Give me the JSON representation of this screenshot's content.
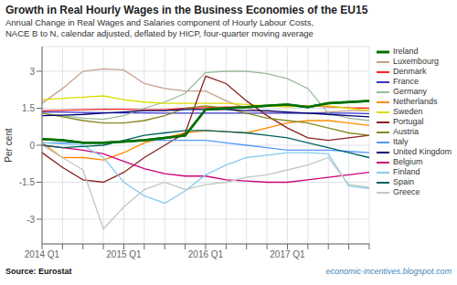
{
  "chart_data": {
    "type": "line",
    "title": "Growth in Real Hourly Wages in the Business Economies of the EU15",
    "subtitle": [
      "Annual Change in Real Wages and Salaries component of Hourly Labour Costs,",
      "NACE B to N, calendar adjusted, deflated by HICP, four-quarter moving average"
    ],
    "ylabel": "Per cent",
    "watermark": "economic-incentives.blogspot.com",
    "source": "Source: Eurostat",
    "categories": [
      "2014 Q1",
      null,
      null,
      null,
      "2015 Q1",
      null,
      null,
      null,
      "2016 Q1",
      null,
      null,
      null,
      "2017 Q1",
      null,
      null,
      null,
      null
    ],
    "ylim": [
      -4.0,
      4.0
    ],
    "yticks": [
      -3,
      -1.5,
      0,
      1.5,
      3
    ],
    "grid": true,
    "legend": "right",
    "series": [
      {
        "name": "Ireland",
        "color": "#007000",
        "values": [
          0.25,
          0.2,
          0.1,
          0.1,
          0.15,
          0.2,
          0.3,
          0.4,
          1.45,
          1.5,
          1.55,
          1.6,
          1.65,
          1.55,
          1.7,
          1.75,
          1.8
        ]
      },
      {
        "name": "Luxembourg",
        "color": "#c8a090",
        "values": [
          1.7,
          2.3,
          3.0,
          3.1,
          3.05,
          2.5,
          2.3,
          2.2,
          2.2,
          1.8,
          1.5,
          1.35,
          1.3,
          1.3,
          1.35,
          1.4,
          1.4
        ]
      },
      {
        "name": "Denmark",
        "color": "#ff2222",
        "values": [
          1.4,
          1.42,
          1.44,
          1.46,
          1.46,
          1.44,
          1.44,
          1.5,
          1.52,
          1.55,
          1.56,
          1.6,
          1.6,
          1.6,
          1.56,
          1.52,
          1.5
        ]
      },
      {
        "name": "France",
        "color": "#3333cc",
        "values": [
          1.35,
          1.35,
          1.33,
          1.32,
          1.31,
          1.31,
          1.3,
          1.3,
          1.3,
          1.3,
          1.3,
          1.3,
          1.3,
          1.3,
          1.3,
          1.3,
          1.28
        ]
      },
      {
        "name": "Germany",
        "color": "#99bb99",
        "values": [
          1.3,
          1.2,
          1.1,
          1.05,
          1.2,
          1.5,
          1.75,
          2.1,
          2.95,
          3.0,
          3.0,
          2.9,
          2.7,
          2.3,
          1.3,
          1.1,
          1.0
        ]
      },
      {
        "name": "Netherlands",
        "color": "#ff8c00",
        "values": [
          0.1,
          -0.5,
          -0.5,
          -0.6,
          -0.3,
          0.1,
          0.3,
          0.5,
          0.6,
          0.55,
          0.5,
          0.7,
          0.9,
          1.0,
          1.0,
          0.9,
          0.8
        ]
      },
      {
        "name": "Sweden",
        "color": "#dddd00",
        "values": [
          1.85,
          1.9,
          1.95,
          2.0,
          1.85,
          1.75,
          1.7,
          1.7,
          1.7,
          1.7,
          1.65,
          1.6,
          1.55,
          1.6,
          1.6,
          1.5,
          1.4
        ]
      },
      {
        "name": "Portugal",
        "color": "#8b2020",
        "values": [
          -0.3,
          -0.9,
          -1.4,
          -1.5,
          -1.1,
          -0.5,
          -0.0,
          0.5,
          2.8,
          2.5,
          1.8,
          1.2,
          0.7,
          0.3,
          0.2,
          0.3,
          0.4
        ]
      },
      {
        "name": "Austria",
        "color": "#888820",
        "values": [
          1.3,
          1.15,
          1.0,
          0.9,
          0.9,
          1.0,
          1.2,
          1.5,
          1.6,
          1.5,
          1.3,
          1.1,
          1.0,
          0.9,
          0.7,
          0.5,
          0.4
        ]
      },
      {
        "name": "Italy",
        "color": "#5599ff",
        "values": [
          0.1,
          0.1,
          0.1,
          0.1,
          0.15,
          0.2,
          0.2,
          0.2,
          0.2,
          0.1,
          0.0,
          -0.1,
          -0.2,
          -0.2,
          -0.2,
          -0.25,
          -0.3
        ]
      },
      {
        "name": "United Kingdom",
        "color": "#000070",
        "values": [
          1.2,
          1.22,
          1.25,
          1.3,
          1.35,
          1.4,
          1.4,
          1.45,
          1.45,
          1.45,
          1.4,
          1.4,
          1.35,
          1.3,
          1.25,
          1.2,
          1.15
        ]
      },
      {
        "name": "Belgium",
        "color": "#cc0077",
        "values": [
          0.0,
          -0.1,
          -0.2,
          -0.35,
          -0.65,
          -0.95,
          -1.15,
          -1.25,
          -1.25,
          -1.4,
          -1.45,
          -1.5,
          -1.5,
          -1.4,
          -1.3,
          -1.2,
          -1.1
        ]
      },
      {
        "name": "Finland",
        "color": "#88ccee",
        "values": [
          0.1,
          0.05,
          0.0,
          -0.5,
          -1.5,
          -2.05,
          -2.35,
          -1.85,
          -1.2,
          -0.8,
          -0.5,
          -0.4,
          -0.3,
          -0.3,
          -0.35,
          -1.65,
          -1.75
        ]
      },
      {
        "name": "Spain",
        "color": "#006060",
        "values": [
          0.0,
          -0.1,
          -0.05,
          0.0,
          0.2,
          0.4,
          0.5,
          0.6,
          0.6,
          0.55,
          0.5,
          0.4,
          0.3,
          0.1,
          -0.1,
          -0.3,
          -0.5
        ]
      },
      {
        "name": "Greece",
        "color": "#c0c8c0",
        "values": [
          0.0,
          -0.5,
          -1.0,
          -3.4,
          -2.5,
          -1.8,
          -1.5,
          -1.8,
          -1.6,
          -1.5,
          -1.3,
          -1.2,
          -1.0,
          -0.8,
          -0.5,
          -1.6,
          -1.7
        ]
      }
    ]
  }
}
